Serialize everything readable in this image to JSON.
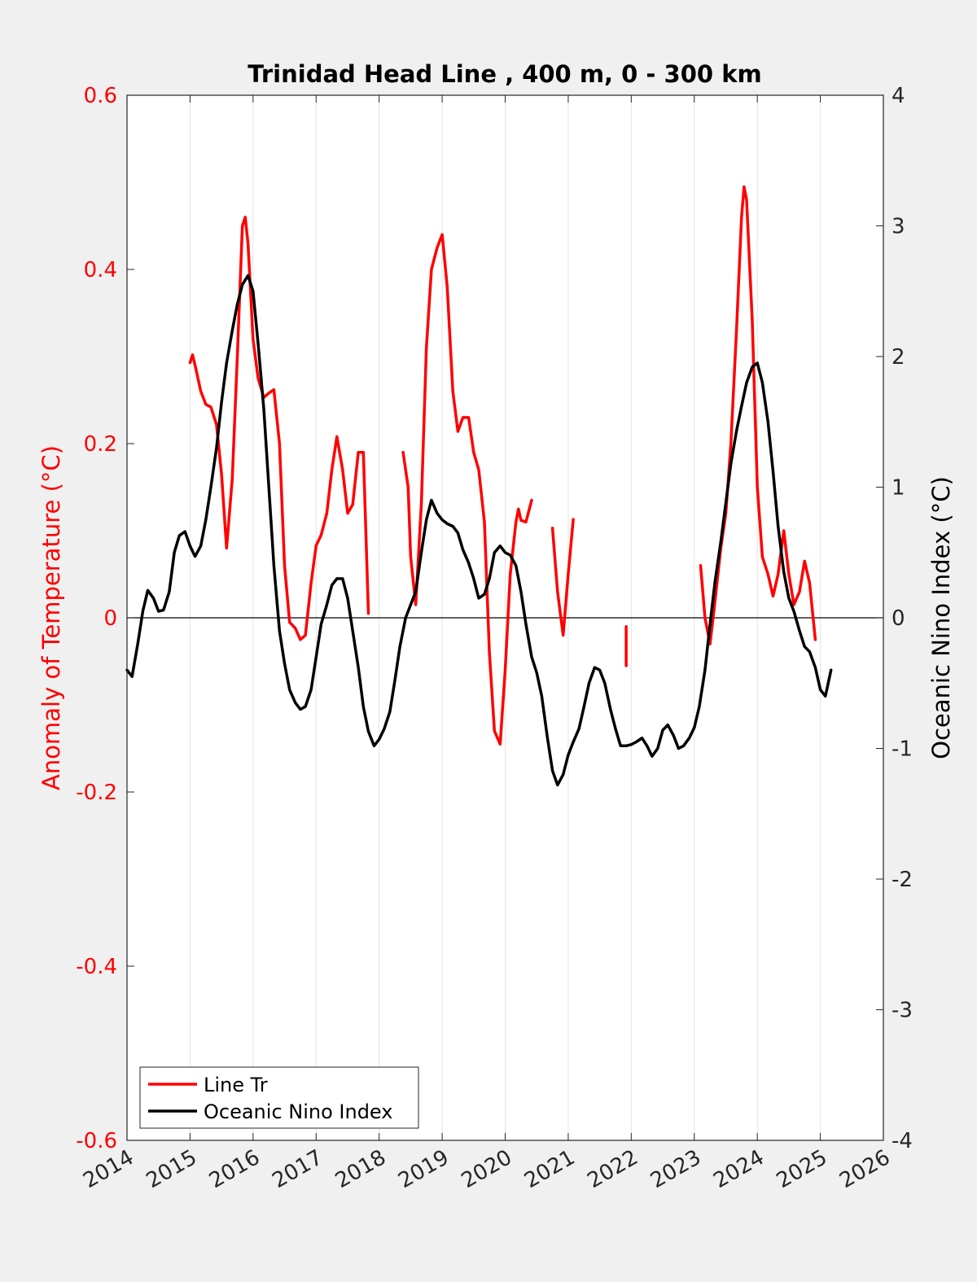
{
  "chart_data": {
    "type": "line",
    "title": "Trinidad Head Line , 400 m, 0 - 300 km",
    "xlabel": "",
    "ylabel_left": "Anomaly of Temperature (°C)",
    "ylabel_right": "Oceanic Nino Index (°C)",
    "xlim": [
      2014,
      2026
    ],
    "ylim_left": [
      -0.6,
      0.6
    ],
    "ylim_right": [
      -4,
      4
    ],
    "x_ticks": [
      "2014",
      "2015",
      "2016",
      "2017",
      "2018",
      "2019",
      "2020",
      "2021",
      "2022",
      "2023",
      "2024",
      "2025",
      "2026"
    ],
    "y_ticks_left": [
      "-0.6",
      "-0.4",
      "-0.2",
      "0",
      "0.2",
      "0.4",
      "0.6"
    ],
    "y_ticks_right": [
      "-4",
      "-3",
      "-2",
      "-1",
      "0",
      "1",
      "2",
      "3",
      "4"
    ],
    "grid": "vertical",
    "legend_position": "bottom-left",
    "colors": {
      "line_tr": "#ff0000",
      "oni": "#000000",
      "left_axis": "#ff0000",
      "right_axis": "#000000"
    },
    "series": [
      {
        "name": "Line Tr",
        "axis": "left",
        "color": "#ff0000",
        "segments": [
          [
            [
              2015.0,
              0.293
            ],
            [
              2015.04,
              0.302
            ],
            [
              2015.08,
              0.29
            ],
            [
              2015.17,
              0.26
            ],
            [
              2015.25,
              0.245
            ],
            [
              2015.33,
              0.242
            ],
            [
              2015.42,
              0.222
            ],
            [
              2015.5,
              0.165
            ],
            [
              2015.58,
              0.08
            ],
            [
              2015.67,
              0.16
            ],
            [
              2015.75,
              0.3
            ],
            [
              2015.83,
              0.45
            ],
            [
              2015.875,
              0.46
            ],
            [
              2015.92,
              0.43
            ],
            [
              2016.0,
              0.32
            ],
            [
              2016.08,
              0.275
            ],
            [
              2016.17,
              0.253
            ],
            [
              2016.25,
              0.258
            ],
            [
              2016.33,
              0.262
            ],
            [
              2016.42,
              0.2
            ],
            [
              2016.5,
              0.06
            ],
            [
              2016.58,
              -0.005
            ],
            [
              2016.67,
              -0.012
            ],
            [
              2016.75,
              -0.025
            ],
            [
              2016.83,
              -0.02
            ],
            [
              2016.92,
              0.04
            ],
            [
              2017.0,
              0.083
            ],
            [
              2017.08,
              0.095
            ],
            [
              2017.17,
              0.12
            ],
            [
              2017.25,
              0.17
            ],
            [
              2017.33,
              0.208
            ],
            [
              2017.42,
              0.17
            ],
            [
              2017.5,
              0.12
            ],
            [
              2017.58,
              0.13
            ],
            [
              2017.67,
              0.19
            ],
            [
              2017.75,
              0.19
            ],
            [
              2017.83,
              0.005
            ]
          ],
          [
            [
              2018.38,
              0.19
            ],
            [
              2018.46,
              0.15
            ],
            [
              2018.5,
              0.07
            ],
            [
              2018.58,
              0.015
            ],
            [
              2018.67,
              0.13
            ],
            [
              2018.75,
              0.31
            ],
            [
              2018.83,
              0.4
            ],
            [
              2018.92,
              0.425
            ],
            [
              2019.0,
              0.44
            ],
            [
              2019.08,
              0.38
            ],
            [
              2019.17,
              0.26
            ],
            [
              2019.25,
              0.214
            ],
            [
              2019.33,
              0.23
            ],
            [
              2019.42,
              0.23
            ],
            [
              2019.5,
              0.19
            ],
            [
              2019.58,
              0.17
            ],
            [
              2019.67,
              0.11
            ],
            [
              2019.75,
              -0.04
            ],
            [
              2019.83,
              -0.13
            ],
            [
              2019.92,
              -0.145
            ],
            [
              2020.0,
              -0.06
            ],
            [
              2020.08,
              0.05
            ],
            [
              2020.17,
              0.11
            ],
            [
              2020.21,
              0.125
            ],
            [
              2020.25,
              0.112
            ],
            [
              2020.33,
              0.11
            ],
            [
              2020.42,
              0.135
            ]
          ],
          [
            [
              2020.75,
              0.103
            ],
            [
              2020.83,
              0.03
            ],
            [
              2020.92,
              -0.02
            ],
            [
              2021.0,
              0.05
            ],
            [
              2021.08,
              0.113
            ]
          ],
          [
            [
              2021.92,
              -0.01
            ],
            [
              2021.92,
              -0.055
            ]
          ],
          [
            [
              2023.1,
              0.06
            ],
            [
              2023.17,
              0.0
            ],
            [
              2023.25,
              -0.03
            ],
            [
              2023.33,
              0.02
            ],
            [
              2023.42,
              0.08
            ],
            [
              2023.5,
              0.12
            ],
            [
              2023.58,
              0.2
            ],
            [
              2023.67,
              0.33
            ],
            [
              2023.75,
              0.46
            ],
            [
              2023.79,
              0.495
            ],
            [
              2023.83,
              0.48
            ],
            [
              2023.92,
              0.34
            ],
            [
              2024.0,
              0.15
            ],
            [
              2024.08,
              0.07
            ],
            [
              2024.17,
              0.05
            ],
            [
              2024.25,
              0.025
            ],
            [
              2024.33,
              0.05
            ],
            [
              2024.42,
              0.1
            ],
            [
              2024.5,
              0.05
            ],
            [
              2024.58,
              0.015
            ],
            [
              2024.67,
              0.03
            ],
            [
              2024.75,
              0.065
            ],
            [
              2024.83,
              0.04
            ],
            [
              2024.92,
              -0.025
            ]
          ]
        ]
      },
      {
        "name": "Oceanic Nino Index",
        "axis": "right",
        "color": "#000000",
        "points": [
          [
            2014.0,
            -0.4
          ],
          [
            2014.08,
            -0.45
          ],
          [
            2014.17,
            -0.2
          ],
          [
            2014.25,
            0.05
          ],
          [
            2014.33,
            0.21
          ],
          [
            2014.42,
            0.15
          ],
          [
            2014.5,
            0.05
          ],
          [
            2014.58,
            0.06
          ],
          [
            2014.67,
            0.2
          ],
          [
            2014.75,
            0.5
          ],
          [
            2014.83,
            0.63
          ],
          [
            2014.92,
            0.66
          ],
          [
            2015.0,
            0.55
          ],
          [
            2015.08,
            0.47
          ],
          [
            2015.17,
            0.55
          ],
          [
            2015.25,
            0.75
          ],
          [
            2015.33,
            1.0
          ],
          [
            2015.42,
            1.3
          ],
          [
            2015.5,
            1.65
          ],
          [
            2015.58,
            1.95
          ],
          [
            2015.67,
            2.2
          ],
          [
            2015.75,
            2.4
          ],
          [
            2015.83,
            2.55
          ],
          [
            2015.92,
            2.62
          ],
          [
            2016.0,
            2.5
          ],
          [
            2016.08,
            2.1
          ],
          [
            2016.17,
            1.6
          ],
          [
            2016.25,
            1.0
          ],
          [
            2016.33,
            0.4
          ],
          [
            2016.42,
            -0.1
          ],
          [
            2016.5,
            -0.35
          ],
          [
            2016.58,
            -0.55
          ],
          [
            2016.67,
            -0.65
          ],
          [
            2016.75,
            -0.7
          ],
          [
            2016.83,
            -0.68
          ],
          [
            2016.92,
            -0.55
          ],
          [
            2017.0,
            -0.3
          ],
          [
            2017.08,
            -0.05
          ],
          [
            2017.17,
            0.1
          ],
          [
            2017.25,
            0.25
          ],
          [
            2017.33,
            0.3
          ],
          [
            2017.42,
            0.3
          ],
          [
            2017.5,
            0.15
          ],
          [
            2017.58,
            -0.1
          ],
          [
            2017.67,
            -0.38
          ],
          [
            2017.75,
            -0.68
          ],
          [
            2017.83,
            -0.87
          ],
          [
            2017.92,
            -0.98
          ],
          [
            2018.0,
            -0.93
          ],
          [
            2018.08,
            -0.85
          ],
          [
            2018.17,
            -0.72
          ],
          [
            2018.25,
            -0.48
          ],
          [
            2018.33,
            -0.22
          ],
          [
            2018.42,
            0.0
          ],
          [
            2018.5,
            0.1
          ],
          [
            2018.58,
            0.2
          ],
          [
            2018.67,
            0.5
          ],
          [
            2018.75,
            0.75
          ],
          [
            2018.83,
            0.9
          ],
          [
            2018.92,
            0.8
          ],
          [
            2019.0,
            0.75
          ],
          [
            2019.08,
            0.72
          ],
          [
            2019.17,
            0.7
          ],
          [
            2019.25,
            0.65
          ],
          [
            2019.33,
            0.52
          ],
          [
            2019.42,
            0.42
          ],
          [
            2019.5,
            0.3
          ],
          [
            2019.58,
            0.15
          ],
          [
            2019.67,
            0.18
          ],
          [
            2019.75,
            0.3
          ],
          [
            2019.83,
            0.5
          ],
          [
            2019.92,
            0.55
          ],
          [
            2020.0,
            0.5
          ],
          [
            2020.08,
            0.48
          ],
          [
            2020.17,
            0.4
          ],
          [
            2020.25,
            0.2
          ],
          [
            2020.33,
            -0.05
          ],
          [
            2020.42,
            -0.3
          ],
          [
            2020.5,
            -0.42
          ],
          [
            2020.58,
            -0.6
          ],
          [
            2020.67,
            -0.92
          ],
          [
            2020.75,
            -1.17
          ],
          [
            2020.83,
            -1.28
          ],
          [
            2020.92,
            -1.2
          ],
          [
            2021.0,
            -1.05
          ],
          [
            2021.08,
            -0.95
          ],
          [
            2021.17,
            -0.85
          ],
          [
            2021.25,
            -0.68
          ],
          [
            2021.33,
            -0.5
          ],
          [
            2021.42,
            -0.38
          ],
          [
            2021.5,
            -0.4
          ],
          [
            2021.58,
            -0.5
          ],
          [
            2021.67,
            -0.7
          ],
          [
            2021.75,
            -0.85
          ],
          [
            2021.83,
            -0.98
          ],
          [
            2021.92,
            -0.98
          ],
          [
            2022.0,
            -0.97
          ],
          [
            2022.08,
            -0.95
          ],
          [
            2022.17,
            -0.92
          ],
          [
            2022.25,
            -0.98
          ],
          [
            2022.33,
            -1.06
          ],
          [
            2022.42,
            -1.0
          ],
          [
            2022.5,
            -0.86
          ],
          [
            2022.58,
            -0.82
          ],
          [
            2022.67,
            -0.9
          ],
          [
            2022.75,
            -1.0
          ],
          [
            2022.83,
            -0.98
          ],
          [
            2022.92,
            -0.92
          ],
          [
            2023.0,
            -0.84
          ],
          [
            2023.08,
            -0.68
          ],
          [
            2023.17,
            -0.4
          ],
          [
            2023.25,
            -0.05
          ],
          [
            2023.33,
            0.28
          ],
          [
            2023.42,
            0.58
          ],
          [
            2023.5,
            0.88
          ],
          [
            2023.58,
            1.18
          ],
          [
            2023.67,
            1.43
          ],
          [
            2023.75,
            1.62
          ],
          [
            2023.83,
            1.8
          ],
          [
            2023.92,
            1.92
          ],
          [
            2024.0,
            1.95
          ],
          [
            2024.08,
            1.8
          ],
          [
            2024.17,
            1.5
          ],
          [
            2024.25,
            1.12
          ],
          [
            2024.33,
            0.7
          ],
          [
            2024.42,
            0.35
          ],
          [
            2024.5,
            0.15
          ],
          [
            2024.58,
            0.05
          ],
          [
            2024.67,
            -0.1
          ],
          [
            2024.75,
            -0.22
          ],
          [
            2024.83,
            -0.26
          ],
          [
            2024.92,
            -0.38
          ],
          [
            2025.0,
            -0.55
          ],
          [
            2025.08,
            -0.6
          ],
          [
            2025.17,
            -0.4
          ]
        ]
      }
    ]
  }
}
